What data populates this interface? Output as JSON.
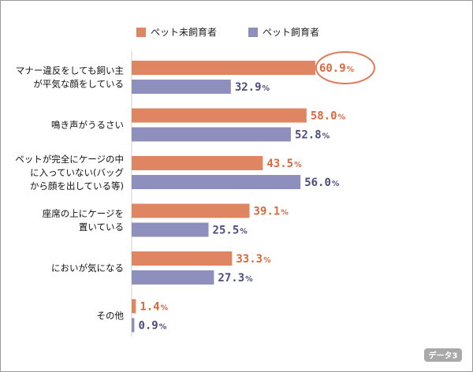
{
  "chart_data": {
    "type": "bar",
    "orientation": "horizontal",
    "categories": [
      [
        "マナー違反をしても飼い主",
        "が平気な顔をしている"
      ],
      [
        "鳴き声がうるさい"
      ],
      [
        "ペットが完全にケージの中",
        "に入っていない(バッグ",
        "から顔を出している等)"
      ],
      [
        "座席の上にケージを",
        "置いている"
      ],
      [
        "においが気になる"
      ],
      [
        "その他"
      ]
    ],
    "series": [
      {
        "name": "ペット未飼育者",
        "color": "#E08562",
        "values": [
          60.9,
          58.0,
          43.5,
          39.1,
          33.3,
          1.4
        ]
      },
      {
        "name": "ペット飼育者",
        "color": "#8F8FBD",
        "values": [
          32.9,
          52.8,
          56.0,
          25.5,
          27.3,
          0.9
        ]
      }
    ],
    "xlim": [
      0,
      100
    ],
    "value_suffix": "%",
    "highlight": {
      "series": 0,
      "index": 0,
      "color": "#E07A58"
    },
    "value_label_colors": [
      "#D9683F",
      "#4D4D80"
    ],
    "legend_position": "top",
    "grid": false,
    "badge": "データ3"
  }
}
